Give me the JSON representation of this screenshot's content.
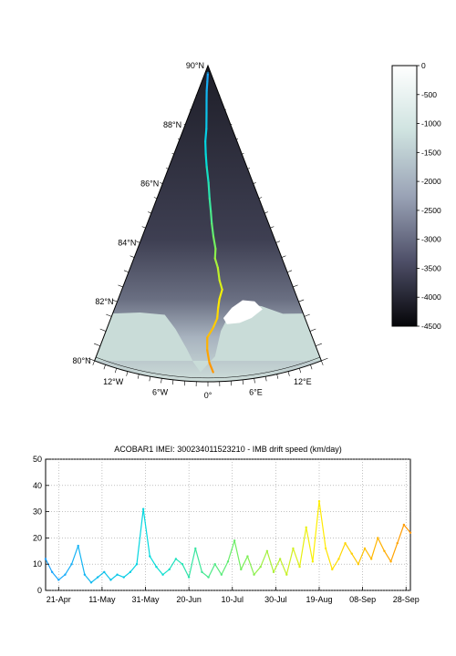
{
  "map": {
    "lat_labels": [
      {
        "lat": 90,
        "text": "90°N"
      },
      {
        "lat": 88,
        "text": "88°N"
      },
      {
        "lat": 86,
        "text": "86°N"
      },
      {
        "lat": 84,
        "text": "84°N"
      },
      {
        "lat": 82,
        "text": "82°N"
      },
      {
        "lat": 80,
        "text": "80°N"
      }
    ],
    "lon_labels": [
      {
        "lon": -12,
        "text": "12°W"
      },
      {
        "lon": -6,
        "text": "6°W"
      },
      {
        "lon": 0,
        "text": "0°"
      },
      {
        "lon": 6,
        "text": "6°E"
      },
      {
        "lon": 12,
        "text": "12°E"
      }
    ],
    "lon_range": [
      -15,
      15
    ],
    "lat_range": [
      80,
      90
    ],
    "land_color": "#ffffff",
    "shelf_color": "#c9dcd8",
    "deep_color": "#2a2a38",
    "track": [
      {
        "lon": 0.0,
        "lat": 89.8
      },
      {
        "lon": -1.5,
        "lat": 89.5
      },
      {
        "lon": -2.0,
        "lat": 89.2
      },
      {
        "lon": -1.6,
        "lat": 88.9
      },
      {
        "lon": -1.2,
        "lat": 88.5
      },
      {
        "lon": -1.0,
        "lat": 88.0
      },
      {
        "lon": -1.4,
        "lat": 87.6
      },
      {
        "lon": -1.0,
        "lat": 87.2
      },
      {
        "lon": -0.5,
        "lat": 86.8
      },
      {
        "lon": 0.2,
        "lat": 86.3
      },
      {
        "lon": 0.5,
        "lat": 85.8
      },
      {
        "lon": 0.8,
        "lat": 85.4
      },
      {
        "lon": 1.0,
        "lat": 85.0
      },
      {
        "lon": 1.3,
        "lat": 84.6
      },
      {
        "lon": 1.7,
        "lat": 84.2
      },
      {
        "lon": 1.5,
        "lat": 83.9
      },
      {
        "lon": 2.0,
        "lat": 83.6
      },
      {
        "lon": 2.2,
        "lat": 83.2
      },
      {
        "lon": 2.6,
        "lat": 82.9
      },
      {
        "lon": 2.0,
        "lat": 82.6
      },
      {
        "lon": 1.7,
        "lat": 82.3
      },
      {
        "lon": 1.5,
        "lat": 82.0
      },
      {
        "lon": 0.8,
        "lat": 81.7
      },
      {
        "lon": -0.1,
        "lat": 81.4
      },
      {
        "lon": -0.1,
        "lat": 81.0
      },
      {
        "lon": 0.2,
        "lat": 80.6
      },
      {
        "lon": 0.7,
        "lat": 80.3
      }
    ]
  },
  "colorbar": {
    "tick_labels": [
      "0",
      "-500",
      "-1000",
      "-1500",
      "-2000",
      "-2500",
      "-3000",
      "-3500",
      "-4000",
      "-4500"
    ],
    "min": -4500,
    "max": 0
  },
  "chart_data": {
    "type": "line",
    "title": "ACOBAR1 IMEI: 300234011523210 - IMB drift speed (km/day)",
    "xlabel": "",
    "ylabel": "",
    "x_tick_labels": [
      "21-Apr",
      "11-May",
      "31-May",
      "20-Jun",
      "10-Jul",
      "30-Jul",
      "19-Aug",
      "08-Sep",
      "28-Sep"
    ],
    "x_range": [
      "2012-04-15",
      "2012-09-30"
    ],
    "y_ticks": [
      0,
      10,
      20,
      30,
      40,
      50
    ],
    "ylim": [
      0,
      50
    ],
    "grid": true,
    "series": [
      {
        "x": [
          "2012-04-15",
          "2012-04-18",
          "2012-04-21",
          "2012-04-24",
          "2012-04-27",
          "2012-04-30",
          "2012-05-03",
          "2012-05-06",
          "2012-05-09",
          "2012-05-12",
          "2012-05-15",
          "2012-05-18",
          "2012-05-21",
          "2012-05-24",
          "2012-05-27",
          "2012-05-30",
          "2012-06-02",
          "2012-06-05",
          "2012-06-08",
          "2012-06-11",
          "2012-06-14",
          "2012-06-17",
          "2012-06-20",
          "2012-06-23",
          "2012-06-26",
          "2012-06-29",
          "2012-07-02",
          "2012-07-05",
          "2012-07-08",
          "2012-07-11",
          "2012-07-14",
          "2012-07-17",
          "2012-07-20",
          "2012-07-23",
          "2012-07-26",
          "2012-07-29",
          "2012-08-01",
          "2012-08-04",
          "2012-08-07",
          "2012-08-10",
          "2012-08-13",
          "2012-08-16",
          "2012-08-19",
          "2012-08-22",
          "2012-08-25",
          "2012-08-28",
          "2012-08-31",
          "2012-09-03",
          "2012-09-06",
          "2012-09-09",
          "2012-09-12",
          "2012-09-15",
          "2012-09-18",
          "2012-09-21",
          "2012-09-24",
          "2012-09-27",
          "2012-09-30"
        ],
        "y": [
          12,
          7,
          4,
          6,
          10,
          17,
          6,
          3,
          5,
          7,
          4,
          6,
          5,
          7,
          10,
          31,
          13,
          9,
          6,
          8,
          12,
          10,
          5,
          16,
          7,
          5,
          10,
          6,
          11,
          19,
          8,
          13,
          6,
          9,
          15,
          7,
          12,
          6,
          16,
          9,
          24,
          11,
          34,
          16,
          8,
          12,
          18,
          14,
          10,
          16,
          12,
          20,
          15,
          11,
          18,
          25,
          22
        ]
      }
    ]
  }
}
